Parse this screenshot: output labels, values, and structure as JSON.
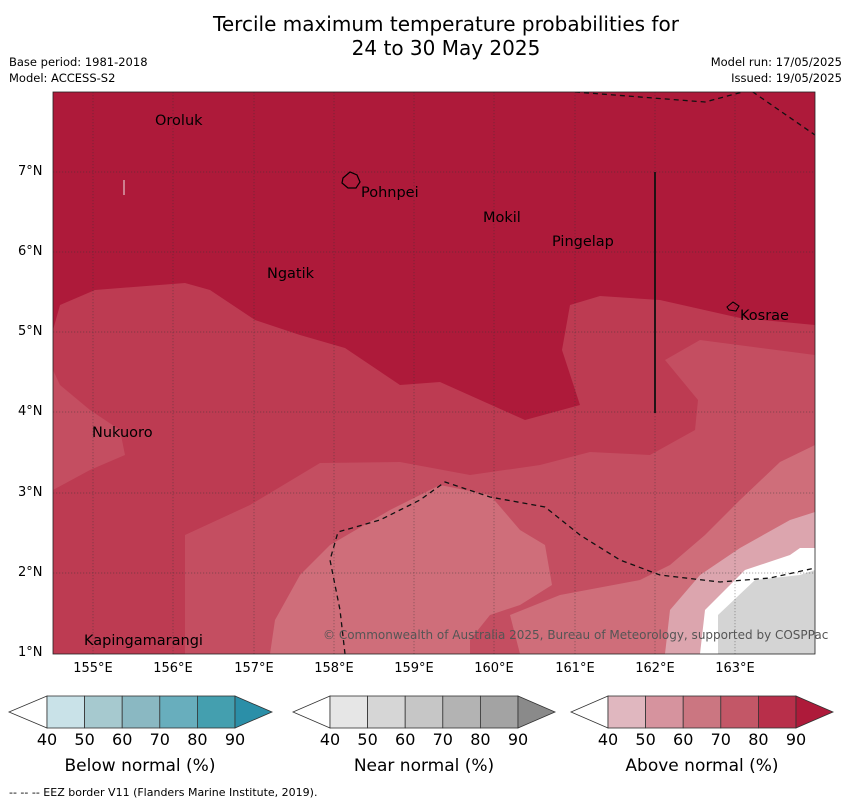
{
  "title": {
    "line1": "Tercile maximum temperature probabilities for",
    "line2": "24 to 30 May 2025"
  },
  "meta_left": {
    "base_period": "Base period: 1981-2018",
    "model": "Model: ACCESS-S2"
  },
  "meta_right": {
    "model_run": "Model run: 17/05/2025",
    "issued": "Issued: 19/05/2025"
  },
  "map": {
    "x_ticks": [
      "155°E",
      "156°E",
      "157°E",
      "158°E",
      "159°E",
      "160°E",
      "161°E",
      "162°E",
      "163°E"
    ],
    "y_ticks": [
      "7°N",
      "6°N",
      "5°N",
      "4°N",
      "3°N",
      "2°N",
      "1°N"
    ],
    "places": [
      "Oroluk",
      "Pohnpei",
      "Mokil",
      "Pingelap",
      "Ngatik",
      "Kosrae",
      "Nukuoro",
      "Kapingamarangi"
    ],
    "copyright": "© Commonwealth of Australia 2025, Bureau of Meteorology, supported by COSPPac"
  },
  "colorbars": {
    "below": {
      "title": "Below normal (%)",
      "ticks": [
        "40",
        "50",
        "60",
        "70",
        "80",
        "90"
      ],
      "colors": [
        "#ffffff",
        "#c9e2e8",
        "#a6c9cf",
        "#8ab8c2",
        "#68aebd",
        "#449faf",
        "#2b8fa8"
      ]
    },
    "near": {
      "title": "Near normal (%)",
      "ticks": [
        "40",
        "50",
        "60",
        "70",
        "80",
        "90"
      ],
      "colors": [
        "#ffffff",
        "#e6e6e6",
        "#d6d6d6",
        "#c6c6c6",
        "#b3b3b3",
        "#a3a3a3",
        "#8a8a8a"
      ]
    },
    "above": {
      "title": "Above normal (%)",
      "ticks": [
        "40",
        "50",
        "60",
        "70",
        "80",
        "90"
      ],
      "colors": [
        "#ffffff",
        "#e0b7bf",
        "#d6939e",
        "#cb7681",
        "#c35767",
        "#b82f4a",
        "#ae1a3a"
      ]
    }
  },
  "footnote": "--  --  -- EEZ border V11 (Flanders Marine Institute, 2019)."
}
